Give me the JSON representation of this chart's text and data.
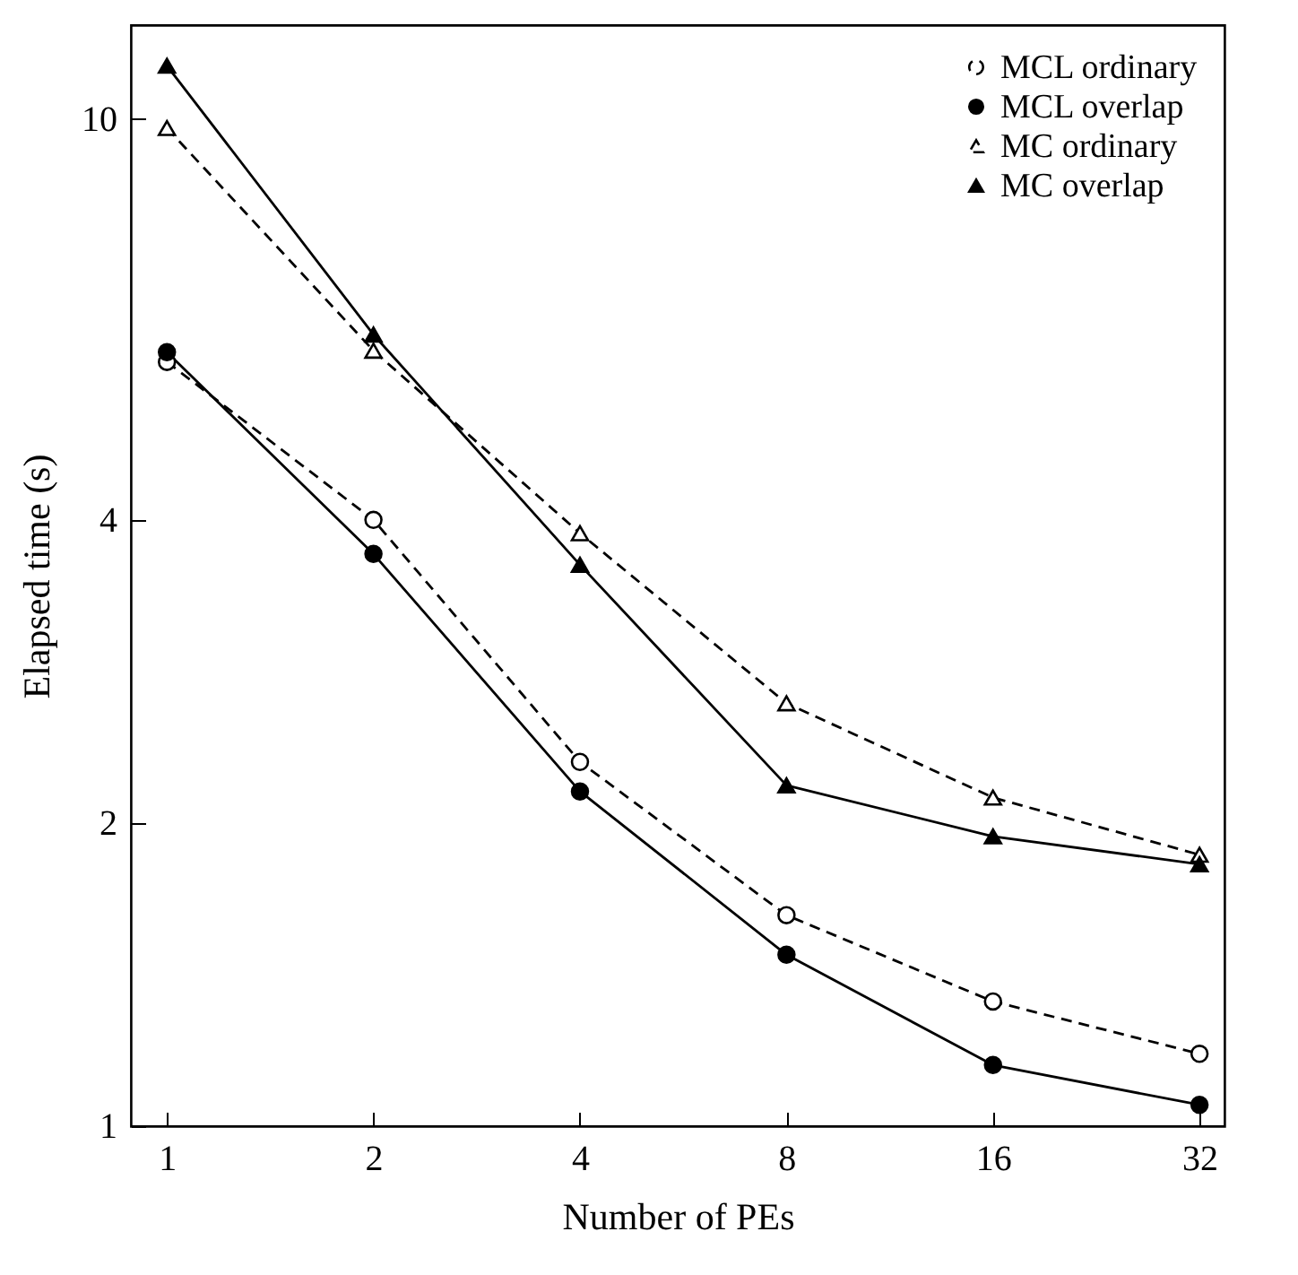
{
  "chart_data": {
    "type": "line",
    "xlabel": "Number of PEs",
    "ylabel": "Elapsed time (s)",
    "x": [
      1,
      2,
      4,
      8,
      16,
      32
    ],
    "series": [
      {
        "name": "MCL ordinary",
        "color": "#000000",
        "marker": "circle",
        "line_style": "dashed",
        "values": [
          5.74,
          4.0,
          2.3,
          1.62,
          1.33,
          1.18
        ]
      },
      {
        "name": "MCL overlap",
        "color": "#000000",
        "marker": "circle",
        "line_style": "solid",
        "values": [
          5.87,
          3.7,
          2.15,
          1.48,
          1.15,
          1.05
        ]
      },
      {
        "name": "MC ordinary",
        "color": "#000000",
        "marker": "triangle",
        "line_style": "dashed",
        "values": [
          9.8,
          5.89,
          3.88,
          2.63,
          2.12,
          1.86
        ]
      },
      {
        "name": "MC overlap",
        "color": "#000000",
        "marker": "triangle",
        "line_style": "solid",
        "values": [
          11.3,
          6.11,
          3.61,
          2.18,
          1.94,
          1.82
        ]
      }
    ],
    "log": "xy",
    "xlim": [
      0.886,
      34.8
    ],
    "ylim": [
      1,
      12.4
    ],
    "xticks": [
      1,
      2,
      4,
      8,
      16,
      32
    ],
    "yticks": [
      1,
      2,
      4,
      10
    ],
    "grid": false,
    "legend": "top right"
  }
}
